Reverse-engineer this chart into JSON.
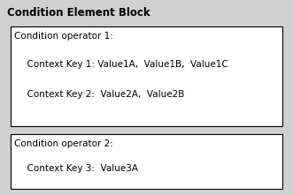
{
  "title": "Condition Element Block",
  "title_fontsize": 8.5,
  "title_fontweight": "bold",
  "outer_bg": "#d0d0d0",
  "inner_bg": "#ffffff",
  "border_color": "#000000",
  "text_color": "#000000",
  "block1_operator": "Condition operator 1:",
  "block1_line1": "  Context Key 1: Value1A,  Value1B,  Value1C",
  "block1_line2": "  Context Key 2:  Value2A,  Value2B",
  "block2_operator": "Condition operator 2:",
  "block2_line1": "  Context Key 3:  Value3A",
  "operator_fontsize": 7.5,
  "content_fontsize": 7.5,
  "figw": 3.31,
  "figh": 2.21,
  "dpi": 100
}
